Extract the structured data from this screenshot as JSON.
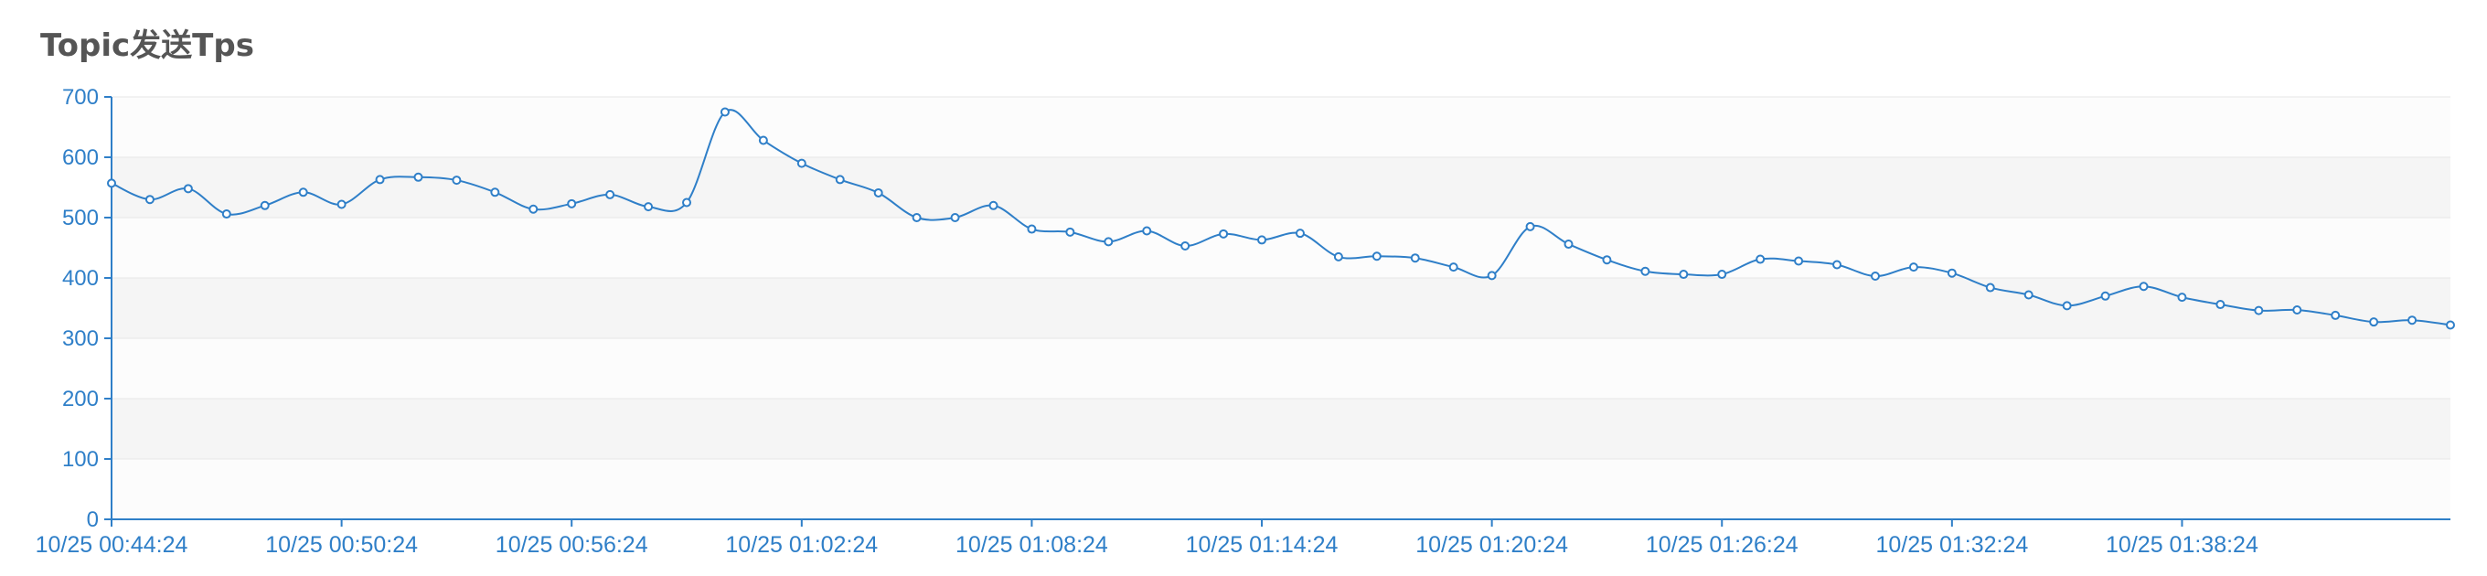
{
  "chart_data": {
    "type": "line",
    "title": "Topic发送Tps",
    "xlabel": "",
    "ylabel": "",
    "ylim": [
      0,
      700
    ],
    "yticks": [
      0,
      100,
      200,
      300,
      400,
      500,
      600,
      700
    ],
    "grid": true,
    "legend": "none",
    "x": [
      "10/25 00:44:24",
      "10/25 00:45:24",
      "10/25 00:46:24",
      "10/25 00:47:24",
      "10/25 00:48:24",
      "10/25 00:49:24",
      "10/25 00:50:24",
      "10/25 00:51:24",
      "10/25 00:52:24",
      "10/25 00:53:24",
      "10/25 00:54:24",
      "10/25 00:55:24",
      "10/25 00:56:24",
      "10/25 00:57:24",
      "10/25 00:58:24",
      "10/25 00:59:24",
      "10/25 01:00:24",
      "10/25 01:01:24",
      "10/25 01:02:24",
      "10/25 01:03:24",
      "10/25 01:04:24",
      "10/25 01:05:24",
      "10/25 01:06:24",
      "10/25 01:07:24",
      "10/25 01:08:24",
      "10/25 01:09:24",
      "10/25 01:10:24",
      "10/25 01:11:24",
      "10/25 01:12:24",
      "10/25 01:13:24",
      "10/25 01:14:24",
      "10/25 01:15:24",
      "10/25 01:16:24",
      "10/25 01:17:24",
      "10/25 01:18:24",
      "10/25 01:19:24",
      "10/25 01:20:24",
      "10/25 01:21:24",
      "10/25 01:22:24",
      "10/25 01:23:24",
      "10/25 01:24:24",
      "10/25 01:25:24",
      "10/25 01:26:24",
      "10/25 01:27:24",
      "10/25 01:28:24",
      "10/25 01:29:24",
      "10/25 01:30:24",
      "10/25 01:31:24",
      "10/25 01:32:24",
      "10/25 01:33:24",
      "10/25 01:34:24",
      "10/25 01:35:24",
      "10/25 01:36:24",
      "10/25 01:37:24",
      "10/25 01:38:24",
      "10/25 01:39:24",
      "10/25 01:40:24",
      "10/25 01:41:24",
      "10/25 01:42:24",
      "10/25 01:43:24",
      "10/25 01:44:24",
      "10/25 01:45:24"
    ],
    "xtick_labels": [
      "10/25 00:44:24",
      "10/25 00:50:24",
      "10/25 00:56:24",
      "10/25 01:02:24",
      "10/25 01:08:24",
      "10/25 01:14:24",
      "10/25 01:20:24",
      "10/25 01:26:24",
      "10/25 01:32:24",
      "10/25 01:38:24"
    ],
    "series": [
      {
        "values": [
          557,
          530,
          548,
          506,
          520,
          542,
          522,
          563,
          567,
          562,
          542,
          514,
          523,
          538,
          518,
          525,
          675,
          628,
          590,
          563,
          541,
          500,
          500,
          520,
          481,
          476,
          460,
          478,
          453,
          473,
          463,
          474,
          435,
          436,
          433,
          418,
          404,
          485,
          456,
          430,
          411,
          406,
          406,
          431,
          428,
          422,
          403,
          418,
          408,
          384,
          372,
          354,
          370,
          386,
          368,
          356,
          346,
          347,
          338,
          327,
          330,
          322
        ]
      }
    ],
    "colors": {
      "line": "#2f7fc8",
      "axis": "#2f7fc8",
      "band": "#f5f5f5",
      "grid": "#e6e6e6",
      "title": "#555555",
      "point_fill": "#ffffff"
    }
  }
}
